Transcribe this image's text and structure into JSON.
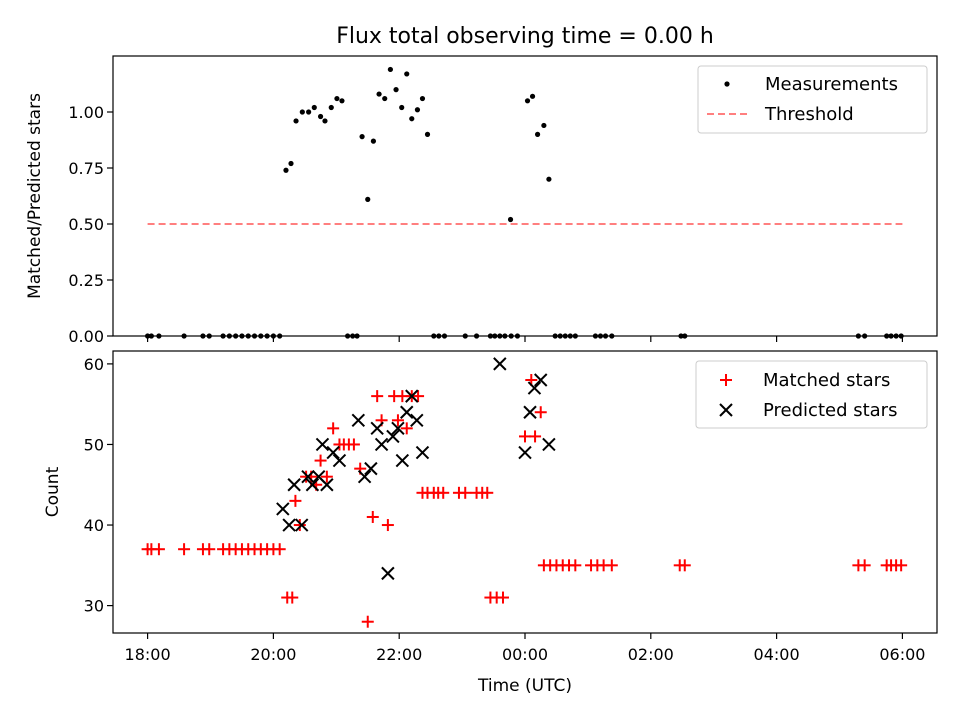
{
  "colors": {
    "measurement": "#000000",
    "threshold": "#ff7f7f",
    "matched": "#ff0000",
    "predicted": "#000000",
    "axis": "#000000"
  },
  "chart_data": [
    {
      "type": "scatter",
      "title": "Flux total observing time = 0.00 h",
      "xlabel": "",
      "ylabel": "Matched/Predicted stars",
      "xlim": [
        -0.55,
        12.55
      ],
      "ylim": [
        0,
        1.25
      ],
      "yticks": [
        0,
        0.25,
        0.5,
        0.75,
        1.0
      ],
      "ytick_labels": [
        "0.00",
        "0.25",
        "0.50",
        "0.75",
        "1.00"
      ],
      "legend": {
        "position": "top-right",
        "entries": [
          "Measurements",
          "Threshold"
        ]
      },
      "threshold": {
        "name": "Threshold",
        "value": 0.5,
        "x_range": [
          0,
          12
        ]
      },
      "series": [
        {
          "name": "Measurements",
          "points": [
            [
              0.0,
              0
            ],
            [
              0.06,
              0
            ],
            [
              0.18,
              0
            ],
            [
              0.58,
              0
            ],
            [
              0.88,
              0
            ],
            [
              0.98,
              0
            ],
            [
              1.2,
              0
            ],
            [
              1.3,
              0
            ],
            [
              1.4,
              0
            ],
            [
              1.5,
              0
            ],
            [
              1.6,
              0
            ],
            [
              1.7,
              0
            ],
            [
              1.8,
              0
            ],
            [
              1.9,
              0
            ],
            [
              2.0,
              0
            ],
            [
              2.1,
              0
            ],
            [
              2.2,
              0.74
            ],
            [
              2.28,
              0.77
            ],
            [
              2.36,
              0.96
            ],
            [
              2.46,
              1.0
            ],
            [
              2.56,
              1.0
            ],
            [
              2.65,
              1.02
            ],
            [
              2.75,
              0.98
            ],
            [
              2.82,
              0.96
            ],
            [
              2.92,
              1.02
            ],
            [
              3.01,
              1.06
            ],
            [
              3.09,
              1.05
            ],
            [
              3.18,
              0
            ],
            [
              3.26,
              0
            ],
            [
              3.33,
              0
            ],
            [
              3.41,
              0.89
            ],
            [
              3.5,
              0.61
            ],
            [
              3.59,
              0.87
            ],
            [
              3.68,
              1.08
            ],
            [
              3.77,
              1.06
            ],
            [
              3.86,
              1.19
            ],
            [
              3.95,
              1.1
            ],
            [
              4.04,
              1.02
            ],
            [
              4.12,
              1.17
            ],
            [
              4.2,
              0.97
            ],
            [
              4.29,
              1.01
            ],
            [
              4.37,
              1.06
            ],
            [
              4.45,
              0.9
            ],
            [
              4.55,
              0
            ],
            [
              4.63,
              0
            ],
            [
              4.72,
              0
            ],
            [
              5.05,
              0
            ],
            [
              5.23,
              0
            ],
            [
              5.45,
              0
            ],
            [
              5.52,
              0
            ],
            [
              5.6,
              0
            ],
            [
              5.68,
              0
            ],
            [
              5.78,
              0
            ],
            [
              5.88,
              0
            ],
            [
              5.77,
              0.52
            ],
            [
              6.04,
              1.05
            ],
            [
              6.12,
              1.07
            ],
            [
              6.2,
              0.9
            ],
            [
              6.3,
              0.94
            ],
            [
              6.38,
              0.7
            ],
            [
              6.48,
              0
            ],
            [
              6.56,
              0
            ],
            [
              6.64,
              0
            ],
            [
              6.72,
              0
            ],
            [
              6.8,
              0
            ],
            [
              7.12,
              0
            ],
            [
              7.2,
              0
            ],
            [
              7.28,
              0
            ],
            [
              7.38,
              0
            ],
            [
              8.48,
              0
            ],
            [
              8.54,
              0
            ],
            [
              11.3,
              0
            ],
            [
              11.4,
              0
            ],
            [
              11.75,
              0
            ],
            [
              11.82,
              0
            ],
            [
              11.9,
              0
            ],
            [
              11.98,
              0
            ]
          ]
        }
      ]
    },
    {
      "type": "scatter",
      "title": "",
      "xlabel": "Time (UTC)",
      "ylabel": "Count",
      "xlim": [
        -0.55,
        12.55
      ],
      "ylim": [
        26.6,
        61.6
      ],
      "yticks": [
        30,
        40,
        50,
        60
      ],
      "ytick_labels": [
        "30",
        "40",
        "50",
        "60"
      ],
      "xticks": [
        0,
        2,
        4,
        6,
        8,
        10,
        12
      ],
      "xtick_labels": [
        "18:00",
        "20:00",
        "22:00",
        "00:00",
        "02:00",
        "04:00",
        "06:00"
      ],
      "legend": {
        "position": "top-right",
        "entries": [
          "Matched stars",
          "Predicted stars"
        ]
      },
      "series": [
        {
          "name": "Matched stars",
          "marker": "plus",
          "points": [
            [
              0.0,
              37
            ],
            [
              0.06,
              37
            ],
            [
              0.18,
              37
            ],
            [
              0.58,
              37
            ],
            [
              0.88,
              37
            ],
            [
              0.98,
              37
            ],
            [
              1.2,
              37
            ],
            [
              1.3,
              37
            ],
            [
              1.4,
              37
            ],
            [
              1.5,
              37
            ],
            [
              1.6,
              37
            ],
            [
              1.7,
              37
            ],
            [
              1.8,
              37
            ],
            [
              1.9,
              37
            ],
            [
              2.0,
              37
            ],
            [
              2.1,
              37
            ],
            [
              2.22,
              31
            ],
            [
              2.3,
              31
            ],
            [
              2.35,
              43
            ],
            [
              2.42,
              40
            ],
            [
              2.52,
              46
            ],
            [
              2.6,
              46
            ],
            [
              2.68,
              45
            ],
            [
              2.75,
              48
            ],
            [
              2.85,
              46
            ],
            [
              2.95,
              52
            ],
            [
              3.05,
              50
            ],
            [
              3.12,
              50
            ],
            [
              3.2,
              50
            ],
            [
              3.28,
              50
            ],
            [
              3.38,
              47
            ],
            [
              3.5,
              28
            ],
            [
              3.58,
              41
            ],
            [
              3.65,
              56
            ],
            [
              3.72,
              53
            ],
            [
              3.82,
              40
            ],
            [
              3.92,
              56
            ],
            [
              3.98,
              53
            ],
            [
              4.05,
              56
            ],
            [
              4.12,
              52
            ],
            [
              4.2,
              56
            ],
            [
              4.3,
              56
            ],
            [
              4.37,
              44
            ],
            [
              4.45,
              44
            ],
            [
              4.55,
              44
            ],
            [
              4.62,
              44
            ],
            [
              4.7,
              44
            ],
            [
              4.95,
              44
            ],
            [
              5.05,
              44
            ],
            [
              5.23,
              44
            ],
            [
              5.32,
              44
            ],
            [
              5.4,
              44
            ],
            [
              5.45,
              31
            ],
            [
              5.55,
              31
            ],
            [
              5.65,
              31
            ],
            [
              6.0,
              51
            ],
            [
              6.1,
              58
            ],
            [
              6.16,
              51
            ],
            [
              6.25,
              54
            ],
            [
              6.3,
              35
            ],
            [
              6.4,
              35
            ],
            [
              6.5,
              35
            ],
            [
              6.6,
              35
            ],
            [
              6.7,
              35
            ],
            [
              6.8,
              35
            ],
            [
              7.05,
              35
            ],
            [
              7.15,
              35
            ],
            [
              7.25,
              35
            ],
            [
              7.38,
              35
            ],
            [
              8.46,
              35
            ],
            [
              8.54,
              35
            ],
            [
              11.3,
              35
            ],
            [
              11.4,
              35
            ],
            [
              11.75,
              35
            ],
            [
              11.82,
              35
            ],
            [
              11.9,
              35
            ],
            [
              11.98,
              35
            ]
          ]
        },
        {
          "name": "Predicted stars",
          "marker": "x",
          "points": [
            [
              2.15,
              42
            ],
            [
              2.25,
              40
            ],
            [
              2.33,
              45
            ],
            [
              2.45,
              40
            ],
            [
              2.55,
              46
            ],
            [
              2.62,
              45
            ],
            [
              2.72,
              46
            ],
            [
              2.78,
              50
            ],
            [
              2.85,
              45
            ],
            [
              2.95,
              49
            ],
            [
              3.05,
              48
            ],
            [
              3.35,
              53
            ],
            [
              3.45,
              46
            ],
            [
              3.55,
              47
            ],
            [
              3.65,
              52
            ],
            [
              3.72,
              50
            ],
            [
              3.82,
              34
            ],
            [
              3.9,
              51
            ],
            [
              3.98,
              52
            ],
            [
              4.05,
              48
            ],
            [
              4.12,
              54
            ],
            [
              4.2,
              56
            ],
            [
              4.28,
              53
            ],
            [
              4.37,
              49
            ],
            [
              5.6,
              60
            ],
            [
              6.0,
              49
            ],
            [
              6.08,
              54
            ],
            [
              6.15,
              57
            ],
            [
              6.25,
              58
            ],
            [
              6.38,
              50
            ]
          ]
        }
      ]
    }
  ]
}
